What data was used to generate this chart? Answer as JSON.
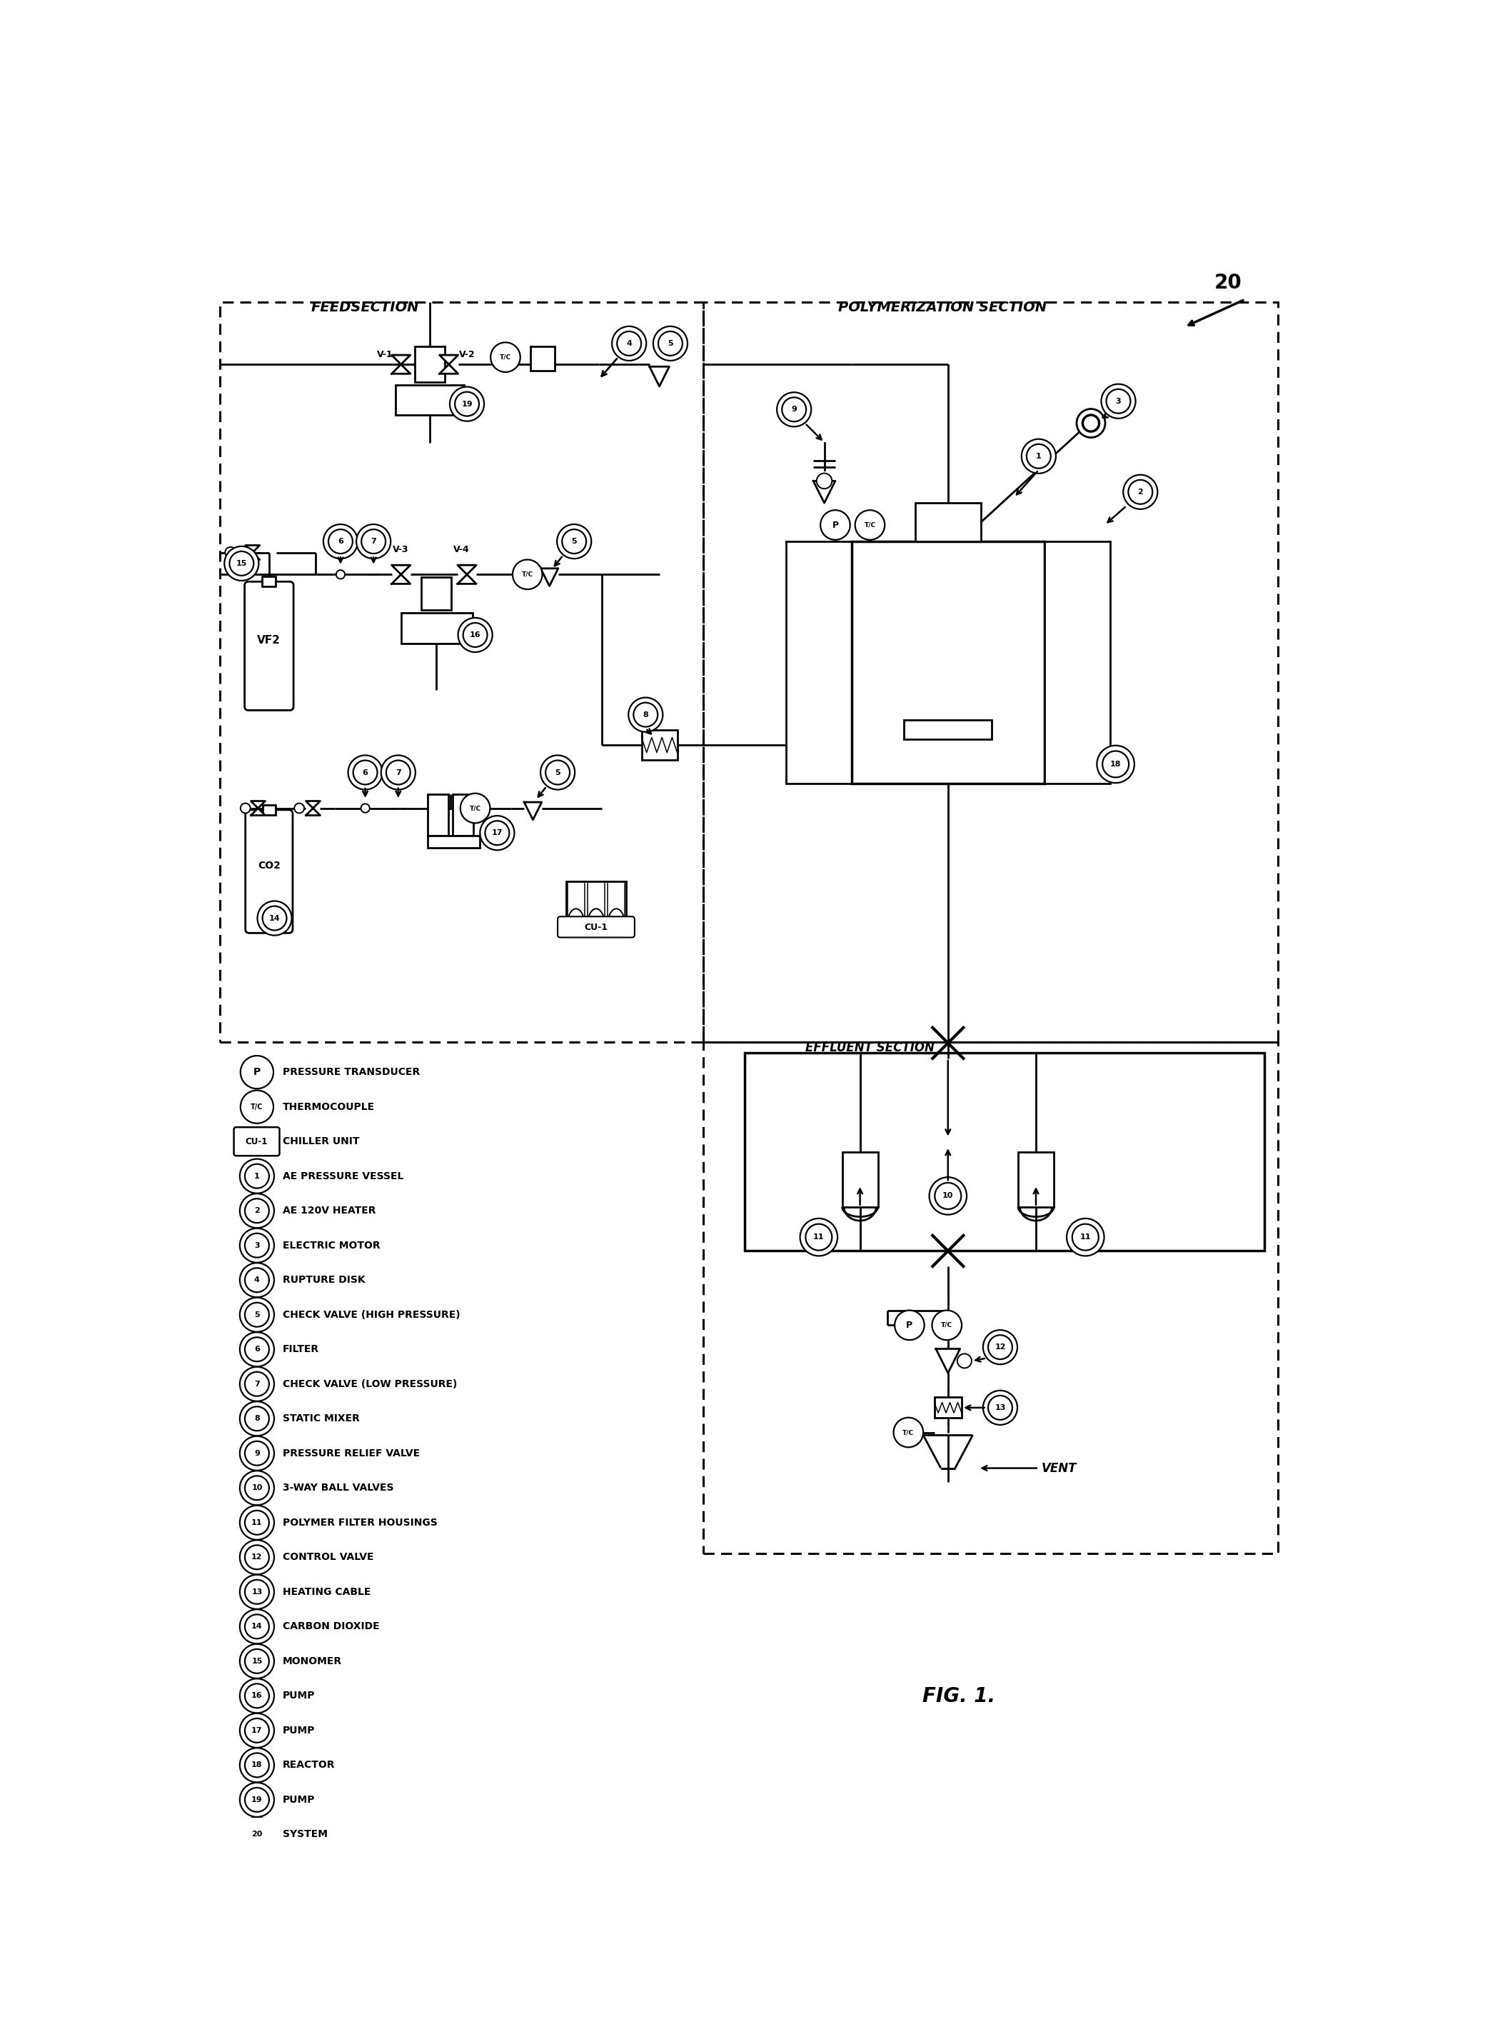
{
  "fig_label": "FIG. 1.",
  "system_number": "20",
  "feedsection_label": "FEEDSECTION",
  "polysection_label": "POLYMERIZATION SECTION",
  "effluent_label": "EFFLUENT SECTION",
  "legend_items_special": [
    [
      "P",
      "PRESSURE TRANSDUCER"
    ],
    [
      "T/C",
      "THERMOCOUPLE"
    ],
    [
      "CU-1",
      "CHILLER UNIT"
    ]
  ],
  "legend_items_numbered": [
    [
      "1",
      "AE PRESSURE VESSEL"
    ],
    [
      "2",
      "AE 120V HEATER"
    ],
    [
      "3",
      "ELECTRIC MOTOR"
    ],
    [
      "4",
      "RUPTURE DISK"
    ],
    [
      "5",
      "CHECK VALVE (HIGH PRESSURE)"
    ],
    [
      "6",
      "FILTER"
    ],
    [
      "7",
      "CHECK VALVE (LOW PRESSURE)"
    ],
    [
      "8",
      "STATIC MIXER"
    ],
    [
      "9",
      "PRESSURE RELIEF VALVE"
    ],
    [
      "10",
      "3-WAY BALL VALVES"
    ],
    [
      "11",
      "POLYMER FILTER HOUSINGS"
    ],
    [
      "12",
      "CONTROL VALVE"
    ],
    [
      "13",
      "HEATING CABLE"
    ],
    [
      "14",
      "CARBON DIOXIDE"
    ],
    [
      "15",
      "MONOMER"
    ],
    [
      "16",
      "PUMP"
    ],
    [
      "17",
      "PUMP"
    ],
    [
      "18",
      "REACTOR"
    ],
    [
      "19",
      "PUMP"
    ],
    [
      "20",
      "SYSTEM"
    ]
  ],
  "bg_color": "#ffffff",
  "lc": "#000000",
  "lw": 2.0,
  "lw_thick": 2.5
}
